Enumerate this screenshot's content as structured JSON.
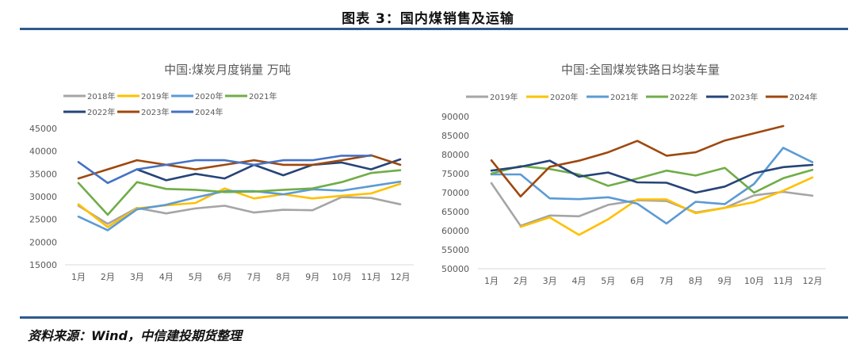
{
  "figure": {
    "title": "图表 3：国内煤销售及运输",
    "source": "资料来源：Wind，中信建投期货整理"
  },
  "chart_data": [
    {
      "type": "line",
      "title": "中国:煤炭月度销量   万吨",
      "xlabel": "",
      "ylabel": "",
      "categories": [
        "1月",
        "2月",
        "3月",
        "4月",
        "5月",
        "6月",
        "7月",
        "8月",
        "9月",
        "10月",
        "11月",
        "12月"
      ],
      "ylim": [
        15000,
        45000
      ],
      "yticks": [
        15000,
        20000,
        25000,
        30000,
        35000,
        40000,
        45000
      ],
      "grid": false,
      "legend": "top",
      "series": [
        {
          "name": "2018年",
          "color": "#A5A5A5",
          "values": [
            28000,
            24000,
            27500,
            26300,
            27400,
            28000,
            26500,
            27100,
            27000,
            29900,
            29700,
            28300
          ]
        },
        {
          "name": "2019年",
          "color": "#FFC000",
          "values": [
            28300,
            23300,
            27400,
            28100,
            28600,
            31800,
            29600,
            30500,
            29600,
            30200,
            30700,
            32800
          ]
        },
        {
          "name": "2020年",
          "color": "#5B9BD5",
          "values": [
            25600,
            22600,
            27200,
            28200,
            29800,
            31200,
            31200,
            30500,
            31600,
            31300,
            32300,
            33300
          ]
        },
        {
          "name": "2021年",
          "color": "#70AD47",
          "values": [
            33000,
            26000,
            33200,
            31700,
            31500,
            31000,
            31100,
            31500,
            31800,
            33200,
            35200,
            35800
          ]
        },
        {
          "name": "2022年",
          "color": "#264478",
          "values": [
            null,
            null,
            36000,
            33600,
            35000,
            34000,
            37000,
            34700,
            37000,
            37500,
            36000,
            38200
          ]
        },
        {
          "name": "2023年",
          "color": "#9E480E",
          "values": [
            34000,
            36000,
            38000,
            37000,
            36000,
            37000,
            38000,
            37000,
            37000,
            38000,
            39100,
            37000
          ]
        },
        {
          "name": "2024年",
          "color": "#4472C4",
          "values": [
            37600,
            33000,
            36000,
            37000,
            38000,
            38000,
            37000,
            38000,
            38000,
            39000,
            39000,
            null
          ]
        }
      ]
    },
    {
      "type": "line",
      "title": "中国:全国煤炭铁路日均装车量",
      "xlabel": "",
      "ylabel": "",
      "categories": [
        "1月",
        "2月",
        "3月",
        "4月",
        "5月",
        "6月",
        "7月",
        "8月",
        "9月",
        "10月",
        "11月",
        "12月"
      ],
      "ylim": [
        50000,
        90000
      ],
      "yticks": [
        50000,
        55000,
        60000,
        65000,
        70000,
        75000,
        80000,
        85000,
        90000
      ],
      "grid": false,
      "legend": "top",
      "series": [
        {
          "name": "2019年",
          "color": "#A5A5A5",
          "values": [
            72500,
            61300,
            64000,
            63800,
            66800,
            68000,
            67800,
            64800,
            66000,
            69300,
            70200,
            69200
          ]
        },
        {
          "name": "2020年",
          "color": "#FFC000",
          "values": [
            null,
            61000,
            63500,
            58900,
            63000,
            68200,
            68200,
            64600,
            66000,
            67500,
            70500,
            74000
          ]
        },
        {
          "name": "2021年",
          "color": "#5B9BD5",
          "values": [
            74800,
            74800,
            68500,
            68300,
            68800,
            67100,
            61900,
            67600,
            67000,
            72300,
            81800,
            78000
          ]
        },
        {
          "name": "2022年",
          "color": "#70AD47",
          "values": [
            75000,
            77000,
            76200,
            74800,
            71800,
            73700,
            75800,
            74500,
            76500,
            70000,
            73800,
            76000
          ]
        },
        {
          "name": "2023年",
          "color": "#264478",
          "values": [
            75800,
            76800,
            78400,
            74200,
            75300,
            72700,
            72600,
            70000,
            71600,
            75100,
            76700,
            77300
          ]
        },
        {
          "name": "2024年",
          "color": "#9E480E",
          "values": [
            78500,
            69000,
            76800,
            78400,
            80600,
            83600,
            79700,
            80600,
            83700,
            85600,
            87500,
            null
          ]
        }
      ]
    }
  ]
}
